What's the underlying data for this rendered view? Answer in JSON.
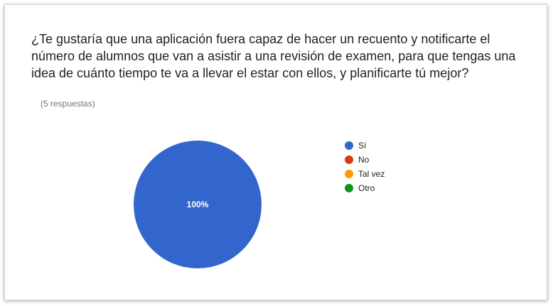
{
  "question": "¿Te gustaría que una aplicación fuera capaz de hacer un recuento y notificarte el número de alumnos que van a asistir a una revisión de examen, para que tengas una idea de cuánto tiempo te va a llevar el estar con ellos, y planificarte tú mejor?",
  "responses_count": "(5 respuestas)",
  "chart_data": {
    "type": "pie",
    "title": "¿Te gustaría que una aplicación fuera capaz de hacer un recuento y notificarte el número de alumnos que van a asistir a una revisión de examen, para que tengas una idea de cuánto tiempo te va a llevar el estar con ellos, y planificarte tú mejor?",
    "categories": [
      "Sí",
      "No",
      "Tal vez",
      "Otro"
    ],
    "values": [
      100,
      0,
      0,
      0
    ],
    "data_labels": [
      "100%",
      "",
      "",
      ""
    ],
    "colors": [
      "#3366cc",
      "#dc3912",
      "#ff9900",
      "#109618"
    ],
    "legend_position": "right"
  }
}
